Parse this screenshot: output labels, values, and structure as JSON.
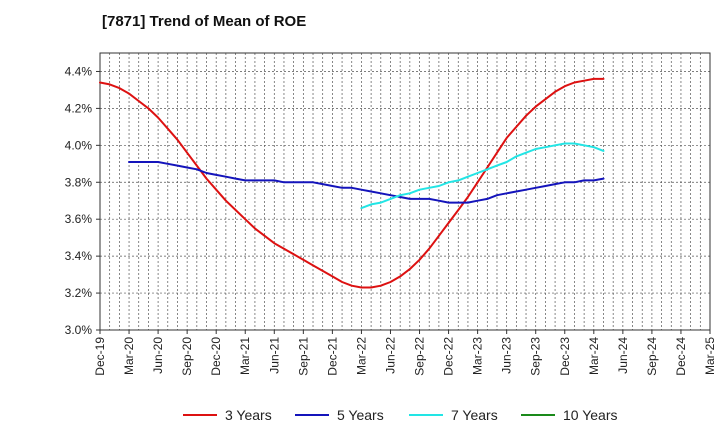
{
  "chart_data": {
    "type": "line",
    "title": "[7871]  Trend of Mean of ROE",
    "x_tick_labels": [
      "Dec-19",
      "Mar-20",
      "Jun-20",
      "Sep-20",
      "Dec-20",
      "Mar-21",
      "Jun-21",
      "Sep-21",
      "Dec-21",
      "Mar-22",
      "Jun-22",
      "Sep-22",
      "Dec-22",
      "Mar-23",
      "Jun-23",
      "Sep-23",
      "Dec-23",
      "Mar-24",
      "Jun-24",
      "Sep-24",
      "Dec-24",
      "Mar-25"
    ],
    "y_tick_labels": [
      "3.0%",
      "3.2%",
      "3.4%",
      "3.6%",
      "3.8%",
      "4.0%",
      "4.2%",
      "4.4%"
    ],
    "ylim": [
      3.0,
      4.5
    ],
    "y_ticks": [
      3.0,
      3.2,
      3.4,
      3.6,
      3.8,
      4.0,
      4.2,
      4.4
    ],
    "grid": true,
    "legend_position": "bottom",
    "series": [
      {
        "name": "3 Years",
        "color": "#dd1111",
        "start_index": 0,
        "values": [
          4.34,
          4.33,
          4.31,
          4.28,
          4.24,
          4.2,
          4.15,
          4.09,
          4.03,
          3.96,
          3.89,
          3.82,
          3.76,
          3.7,
          3.65,
          3.6,
          3.55,
          3.51,
          3.47,
          3.44,
          3.41,
          3.38,
          3.35,
          3.32,
          3.29,
          3.26,
          3.24,
          3.23,
          3.23,
          3.24,
          3.26,
          3.29,
          3.33,
          3.38,
          3.44,
          3.51,
          3.58,
          3.65,
          3.72,
          3.8,
          3.88,
          3.96,
          4.04,
          4.1,
          4.16,
          4.21,
          4.25,
          4.29,
          4.32,
          4.34,
          4.35,
          4.36,
          4.36
        ]
      },
      {
        "name": "5 Years",
        "color": "#1414bb",
        "start_index": 3,
        "values": [
          3.91,
          3.91,
          3.91,
          3.91,
          3.9,
          3.89,
          3.88,
          3.87,
          3.85,
          3.84,
          3.83,
          3.82,
          3.81,
          3.81,
          3.81,
          3.81,
          3.8,
          3.8,
          3.8,
          3.8,
          3.79,
          3.78,
          3.77,
          3.77,
          3.76,
          3.75,
          3.74,
          3.73,
          3.72,
          3.71,
          3.71,
          3.71,
          3.7,
          3.69,
          3.69,
          3.69,
          3.7,
          3.71,
          3.73,
          3.74,
          3.75,
          3.76,
          3.77,
          3.78,
          3.79,
          3.8,
          3.8,
          3.81,
          3.81,
          3.82
        ]
      },
      {
        "name": "7 Years",
        "color": "#22e5e5",
        "start_index": 27,
        "values": [
          3.66,
          3.68,
          3.69,
          3.71,
          3.73,
          3.74,
          3.76,
          3.77,
          3.78,
          3.8,
          3.81,
          3.83,
          3.85,
          3.87,
          3.89,
          3.91,
          3.94,
          3.96,
          3.98,
          3.99,
          4.0,
          4.01,
          4.01,
          4.0,
          3.99,
          3.97
        ]
      },
      {
        "name": "10 Years",
        "color": "#1a8a1a",
        "start_index": 0,
        "values": []
      }
    ]
  }
}
